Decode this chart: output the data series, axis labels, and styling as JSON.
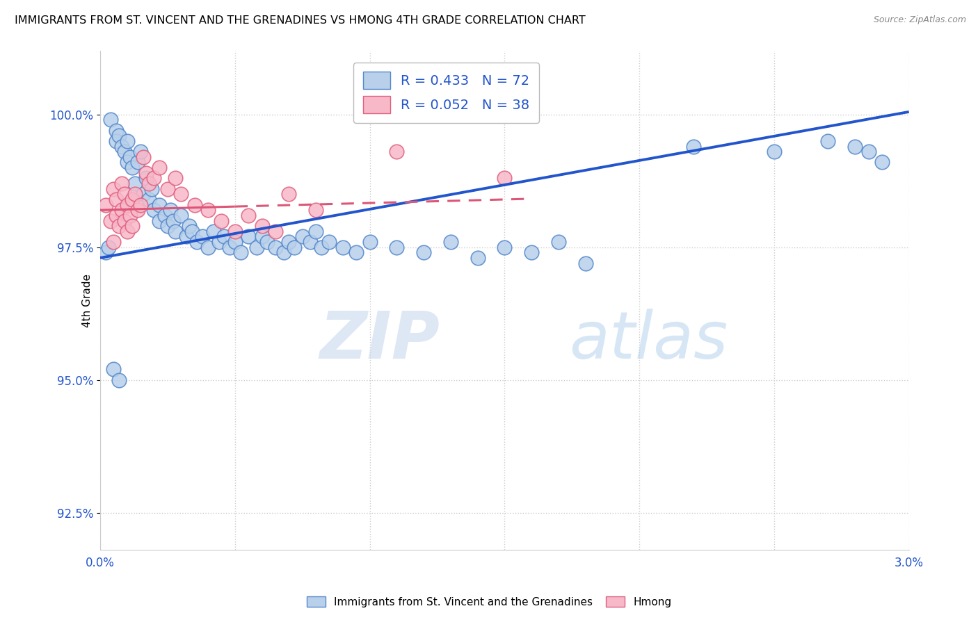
{
  "title": "IMMIGRANTS FROM ST. VINCENT AND THE GRENADINES VS HMONG 4TH GRADE CORRELATION CHART",
  "source": "Source: ZipAtlas.com",
  "ylabel_label": "4th Grade",
  "y_ticks": [
    92.5,
    95.0,
    97.5,
    100.0
  ],
  "y_tick_labels": [
    "92.5%",
    "95.0%",
    "97.5%",
    "100.0%"
  ],
  "xlim": [
    0.0,
    3.0
  ],
  "ylim": [
    91.8,
    101.2
  ],
  "blue_R": 0.433,
  "blue_N": 72,
  "pink_R": 0.052,
  "pink_N": 38,
  "blue_scatter_color": "#b8d0ea",
  "blue_edge_color": "#5588cc",
  "pink_scatter_color": "#f7b8c8",
  "pink_edge_color": "#e06080",
  "blue_line_color": "#2255cc",
  "pink_line_color": "#dd5577",
  "watermark_zip": "ZIP",
  "watermark_atlas": "atlas",
  "legend_label_blue": "Immigrants from St. Vincent and the Grenadines",
  "legend_label_pink": "Hmong",
  "blue_line_x0": 0.0,
  "blue_line_y0": 97.3,
  "blue_line_x1": 3.0,
  "blue_line_y1": 100.05,
  "pink_line_x0": 0.0,
  "pink_line_y0": 98.2,
  "pink_line_x1": 3.0,
  "pink_line_y1": 98.6,
  "pink_line_dash_end": 1.6,
  "blue_scatter_x": [
    0.04,
    0.06,
    0.06,
    0.07,
    0.08,
    0.09,
    0.1,
    0.1,
    0.11,
    0.12,
    0.13,
    0.14,
    0.15,
    0.16,
    0.17,
    0.18,
    0.19,
    0.2,
    0.22,
    0.22,
    0.24,
    0.25,
    0.26,
    0.27,
    0.28,
    0.3,
    0.32,
    0.33,
    0.34,
    0.36,
    0.38,
    0.4,
    0.42,
    0.44,
    0.46,
    0.48,
    0.5,
    0.52,
    0.55,
    0.58,
    0.6,
    0.62,
    0.65,
    0.68,
    0.7,
    0.72,
    0.75,
    0.78,
    0.8,
    0.82,
    0.85,
    0.9,
    0.95,
    1.0,
    1.1,
    1.2,
    1.3,
    1.4,
    1.5,
    1.6,
    1.7,
    1.8,
    2.2,
    2.5,
    2.7,
    2.8,
    2.85,
    2.9,
    0.02,
    0.03,
    0.05,
    0.07
  ],
  "blue_scatter_y": [
    99.9,
    99.7,
    99.5,
    99.6,
    99.4,
    99.3,
    99.5,
    99.1,
    99.2,
    99.0,
    98.7,
    99.1,
    99.3,
    98.5,
    98.8,
    98.4,
    98.6,
    98.2,
    98.3,
    98.0,
    98.1,
    97.9,
    98.2,
    98.0,
    97.8,
    98.1,
    97.7,
    97.9,
    97.8,
    97.6,
    97.7,
    97.5,
    97.8,
    97.6,
    97.7,
    97.5,
    97.6,
    97.4,
    97.7,
    97.5,
    97.7,
    97.6,
    97.5,
    97.4,
    97.6,
    97.5,
    97.7,
    97.6,
    97.8,
    97.5,
    97.6,
    97.5,
    97.4,
    97.6,
    97.5,
    97.4,
    97.6,
    97.3,
    97.5,
    97.4,
    97.6,
    97.2,
    99.4,
    99.3,
    99.5,
    99.4,
    99.3,
    99.1,
    97.4,
    97.5,
    95.2,
    95.0
  ],
  "pink_scatter_x": [
    0.02,
    0.04,
    0.05,
    0.06,
    0.06,
    0.07,
    0.08,
    0.08,
    0.09,
    0.09,
    0.1,
    0.1,
    0.11,
    0.12,
    0.12,
    0.13,
    0.14,
    0.15,
    0.16,
    0.17,
    0.18,
    0.2,
    0.22,
    0.25,
    0.28,
    0.3,
    0.35,
    0.4,
    0.45,
    0.5,
    0.55,
    0.6,
    0.65,
    0.7,
    0.8,
    1.1,
    1.5,
    0.05
  ],
  "pink_scatter_y": [
    98.3,
    98.0,
    98.6,
    98.4,
    98.1,
    97.9,
    98.7,
    98.2,
    98.5,
    98.0,
    98.3,
    97.8,
    98.1,
    98.4,
    97.9,
    98.5,
    98.2,
    98.3,
    99.2,
    98.9,
    98.7,
    98.8,
    99.0,
    98.6,
    98.8,
    98.5,
    98.3,
    98.2,
    98.0,
    97.8,
    98.1,
    97.9,
    97.8,
    98.5,
    98.2,
    99.3,
    98.8,
    97.6
  ]
}
